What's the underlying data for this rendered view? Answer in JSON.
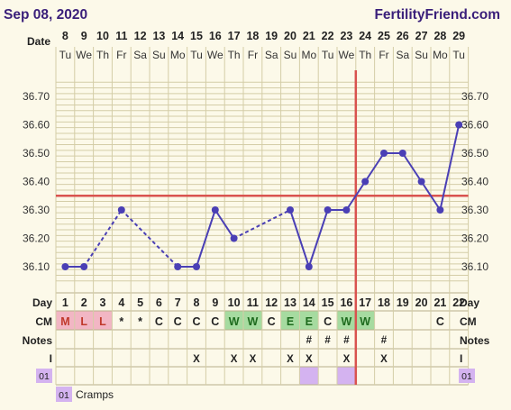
{
  "header": {
    "date": "Sep 08, 2020",
    "site": "FertilityFriend.com"
  },
  "row_labels": {
    "date": "Date",
    "day": "Day",
    "cm": "CM",
    "notes": "Notes",
    "intercourse": "I",
    "custom": "01"
  },
  "colors": {
    "background": "#fcf9e9",
    "grid": "#d4cda7",
    "line": "#4a3fb5",
    "coverline": "#d9534f",
    "cm_pink": "#f2b6c4",
    "cm_green": "#a6dba0",
    "custom_purple": "#d4b3f0"
  },
  "chart_data": {
    "type": "line",
    "title": "",
    "xlabel": "Date",
    "ylabel": "",
    "dates": [
      "8",
      "9",
      "10",
      "11",
      "12",
      "13",
      "14",
      "15",
      "16",
      "17",
      "18",
      "19",
      "20",
      "21",
      "22",
      "23",
      "24",
      "25",
      "26",
      "27",
      "28",
      "29"
    ],
    "weekdays": [
      "Tu",
      "We",
      "Th",
      "Fr",
      "Sa",
      "Su",
      "Mo",
      "Tu",
      "We",
      "Th",
      "Fr",
      "Sa",
      "Su",
      "Mo",
      "Tu",
      "We",
      "Th",
      "Fr",
      "Sa",
      "Su",
      "Mo",
      "Tu"
    ],
    "cycle_days": [
      "1",
      "2",
      "3",
      "4",
      "5",
      "6",
      "7",
      "8",
      "9",
      "10",
      "11",
      "12",
      "13",
      "14",
      "15",
      "16",
      "17",
      "18",
      "19",
      "20",
      "21",
      "22"
    ],
    "temperatures": [
      36.1,
      36.1,
      null,
      36.3,
      null,
      null,
      36.1,
      36.1,
      36.3,
      36.2,
      null,
      null,
      36.3,
      36.1,
      36.3,
      36.3,
      36.4,
      36.5,
      36.5,
      36.4,
      36.3,
      36.6
    ],
    "y_ticks": [
      "36.70",
      "36.60",
      "36.50",
      "36.40",
      "36.30",
      "36.20",
      "36.10"
    ],
    "ylim": [
      36.05,
      36.75
    ],
    "coverline": 36.35,
    "ovulation_day_index": 15,
    "grid": true
  },
  "cm": [
    "M",
    "L",
    "L",
    "*",
    "*",
    "C",
    "C",
    "C",
    "C",
    "W",
    "W",
    "C",
    "E",
    "E",
    "C",
    "W",
    "W",
    "",
    "",
    "",
    "C",
    ""
  ],
  "cm_colors": [
    "pink",
    "pink",
    "pink",
    "",
    "",
    "",
    "",
    "",
    "",
    "green",
    "green",
    "",
    "green",
    "green",
    "",
    "green",
    "green",
    "",
    "",
    "",
    "",
    ""
  ],
  "notes": [
    "",
    "",
    "",
    "",
    "",
    "",
    "",
    "",
    "",
    "",
    "",
    "",
    "",
    "#",
    "#",
    "#",
    "",
    "#",
    "",
    "",
    "",
    ""
  ],
  "intercourse": [
    "",
    "",
    "",
    "",
    "",
    "",
    "",
    "X",
    "",
    "X",
    "X",
    "",
    "X",
    "X",
    "",
    "X",
    "",
    "X",
    "",
    "",
    "",
    ""
  ],
  "custom_marks": [
    false,
    false,
    false,
    false,
    false,
    false,
    false,
    false,
    false,
    false,
    false,
    false,
    false,
    true,
    false,
    true,
    false,
    false,
    false,
    false,
    false,
    false
  ],
  "legend": {
    "code": "01",
    "label": "Cramps"
  }
}
